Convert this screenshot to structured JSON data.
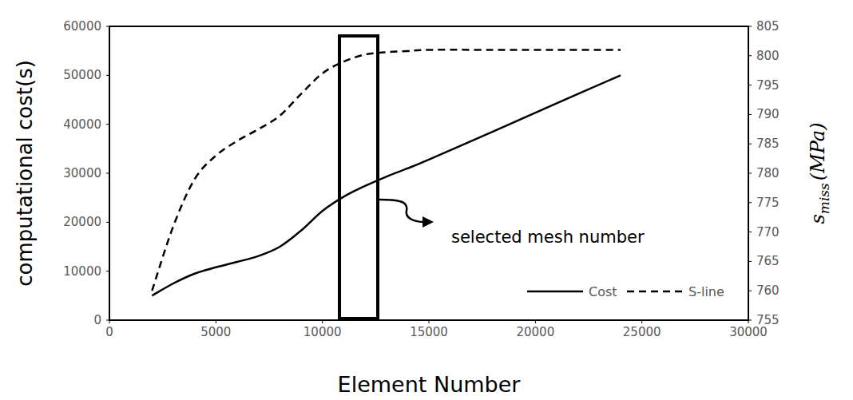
{
  "chart_data": {
    "type": "line",
    "x": [
      2000,
      3000,
      4000,
      5000,
      6000,
      7000,
      8000,
      9000,
      10000,
      11000,
      12000,
      13000,
      14000,
      15000,
      18000,
      21000,
      24000
    ],
    "series": [
      {
        "name": "Cost",
        "color": "#000000",
        "line_style": "solid",
        "values": [
          5000,
          7500,
          9500,
          10800,
          11900,
          13100,
          15000,
          18300,
          22300,
          25200,
          27400,
          29300,
          31000,
          32800,
          38500,
          44300,
          50000
        ]
      },
      {
        "name": "S-line",
        "color": "#000000",
        "line_style": "dashed",
        "axis": "y2",
        "values": [
          760,
          771,
          779,
          783,
          785.5,
          787.5,
          789.8,
          793.5,
          797,
          799,
          800.2,
          800.6,
          800.8,
          801,
          801,
          801,
          801
        ]
      }
    ],
    "xlabel": "Element Number",
    "ylabel": "computational cost(s)",
    "y2label": {
      "base": "s",
      "subscript": "miss",
      "unit": "(MPa)"
    },
    "xlim": [
      0,
      30000
    ],
    "xticks": [
      0,
      5000,
      10000,
      15000,
      20000,
      25000,
      30000
    ],
    "ylim": [
      0,
      60000
    ],
    "yticks": [
      0,
      10000,
      20000,
      30000,
      40000,
      50000,
      60000
    ],
    "y2lim": [
      755,
      805
    ],
    "y2ticks": [
      755,
      760,
      765,
      770,
      775,
      780,
      785,
      790,
      795,
      800,
      805
    ],
    "annotations": [
      {
        "text": "selected mesh number",
        "x_range": [
          10800,
          12600
        ]
      }
    ],
    "legend": "lower right",
    "grid": false
  }
}
